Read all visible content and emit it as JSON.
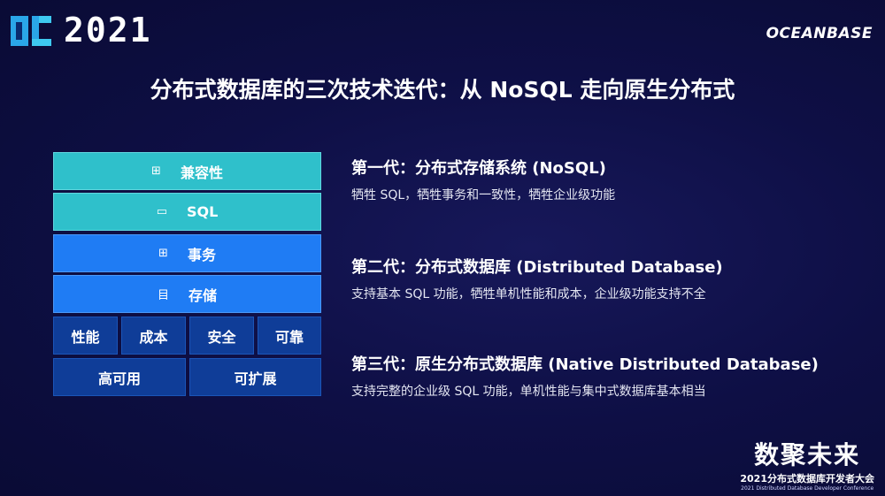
{
  "header": {
    "year": "2021",
    "brand": "OCEANBASE"
  },
  "title": "分布式数据库的三次技术迭代：从 NoSQL 走向原生分布式",
  "stack": {
    "layers": [
      {
        "label": "兼容性",
        "icon": "grid-icon",
        "glyph": "⊞",
        "color": "#2fc0cb"
      },
      {
        "label": "SQL",
        "icon": "monitor-icon",
        "glyph": "▭",
        "color": "#2fc0cb"
      },
      {
        "label": "事务",
        "icon": "grid-plus-icon",
        "glyph": "⊞",
        "color": "#1f7cf4"
      },
      {
        "label": "存储",
        "icon": "list-icon",
        "glyph": "目",
        "color": "#1f7cf4"
      }
    ],
    "row5": [
      "性能",
      "成本",
      "安全",
      "可靠"
    ],
    "row6": [
      "高可用",
      "可扩展"
    ],
    "base_color": "#0f3d98"
  },
  "generations": [
    {
      "title": "第一代：分布式存储系统 (NoSQL)",
      "desc": "牺牲 SQL，牺牲事务和一致性，牺牲企业级功能"
    },
    {
      "title": "第二代：分布式数据库 (Distributed Database)",
      "desc": "支持基本 SQL 功能，牺牲单机性能和成本，企业级功能支持不全"
    },
    {
      "title": "第三代：原生分布式数据库 (Native Distributed Database)",
      "desc": "支持完整的企业级 SQL 功能，单机性能与集中式数据库基本相当"
    }
  ],
  "conference": {
    "slogan": "数聚未来",
    "name": "2021分布式数据库开发者大会",
    "name_en": "2021 Distributed Database Developer Conference"
  }
}
